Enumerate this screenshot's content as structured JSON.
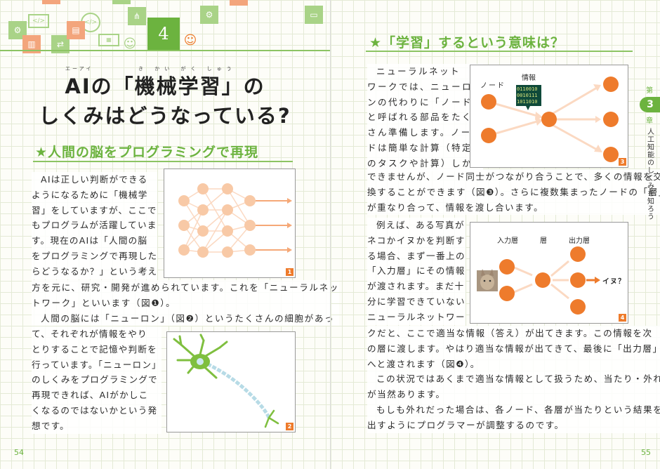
{
  "left_page": {
    "chapter_badge": "4",
    "title": {
      "line1": "AIの「機械学習」の",
      "line2": "しくみはどうなっている?",
      "ruby_ai": "エーアイ",
      "ruby_kikaigakushu": "き かい がく しゅう"
    },
    "section_heading": "★人間の脳をプログラミングで再現",
    "block_a": [
      "AIは正しい判断ができる",
      "ようになるために「機械学",
      "習」をしていますが、ここで",
      "もプログラムが活躍していま",
      "す。現在のAIは「人間の脳",
      "をプログラミングで再現した",
      "らどうなるか？」という考え"
    ],
    "block_b": [
      "方を元に、研究・開発が進められています。これを「ニューラルネッ",
      "トワーク」といいます（図❶）。",
      "人間の脳には「ニューロン」（図❷）というたくさんの細胞があっ"
    ],
    "block_c": [
      "て、それぞれが情報をやり",
      "とりすることで記憶や判断を",
      "行っています。「ニューロン」",
      "のしくみをプログラミングで",
      "再現できれば、AIがかしこ",
      "くなるのではないかという発",
      "想です。"
    ],
    "figure1_number": "1",
    "figure2_number": "2",
    "page_number": "54"
  },
  "right_page": {
    "section_heading": "★「学習」するという意味は？",
    "block_d": [
      "ニューラルネット",
      "ワークでは、ニューロ",
      "ンの代わりに「ノード」",
      "と呼ばれる部品をたく",
      "さん準備します。ノー",
      "ドは簡単な計算（特定",
      "のタスクや計算）しか"
    ],
    "block_e": [
      "できませんが、ノード同士がつながり合うことで、多くの情報を交",
      "換することができます（図❸）。さらに複数集まったノードの「層」",
      "が重なり合って、情報を渡し合います。"
    ],
    "block_f": [
      "例えば、ある写真が",
      "ネコかイヌかを判断す",
      "る場合、まず一番上の",
      "「入力層」にその情報",
      "が渡されます。まだ十",
      "分に学習できていない",
      "ニューラルネットワー"
    ],
    "block_g": [
      "クだと、ここで適当な情報（答え）が出てきます。この情報を次",
      "の層に渡します。やはり適当な情報が出てきて、最後に「出力層」",
      "へと渡されます（図❹）。",
      "この状況ではあくまで適当な情報として扱うため、当たり・外れ",
      "が当然あります。",
      "もしも外れだった場合は、各ノード、各層が当たりという結果を",
      "出すようにプログラマーが調整するのです。"
    ],
    "figure3": {
      "node_label": "ノード",
      "info_label": "情報",
      "binary": [
        "0110010",
        "0010111",
        "1011010"
      ],
      "number": "3"
    },
    "figure4": {
      "input_layer": "入力層",
      "layer": "層",
      "output_layer": "出力層",
      "result": "イヌ？",
      "number": "4"
    },
    "chapter_tab": {
      "dai": "第",
      "number": "3",
      "sho": "章",
      "title": "人工知能のしくみを知ろう"
    },
    "page_number": "55"
  },
  "colors": {
    "green": "#6cb33f",
    "orange": "#ee7b2c",
    "peach": "#f8c9a6"
  }
}
